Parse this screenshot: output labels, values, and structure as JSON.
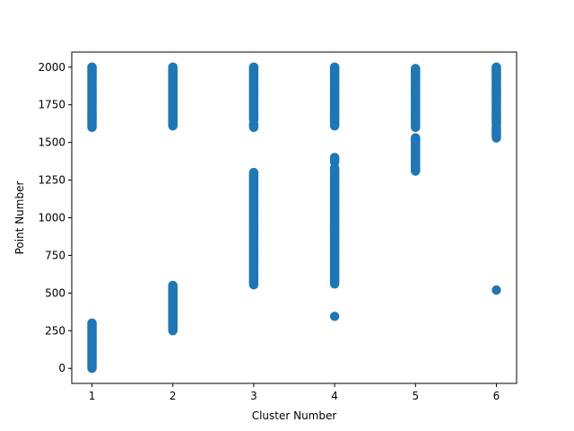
{
  "chart_data": {
    "type": "scatter",
    "xlabel": "Cluster Number",
    "ylabel": "Point Number",
    "xlim": [
      0.75,
      6.25
    ],
    "ylim": [
      -100,
      2100
    ],
    "xticks": [
      1,
      2,
      3,
      4,
      5,
      6
    ],
    "yticks": [
      0,
      250,
      500,
      750,
      1000,
      1250,
      1500,
      1750,
      2000
    ],
    "grid": false,
    "marker_color": "#1f77b4",
    "series": [
      {
        "clusters": [
          {
            "x": 1,
            "ranges": [
              [
                0,
                300
              ],
              [
                1600,
                2000
              ]
            ],
            "points": []
          },
          {
            "x": 2,
            "ranges": [
              [
                250,
                550
              ],
              [
                1610,
                2000
              ]
            ],
            "points": []
          },
          {
            "x": 3,
            "ranges": [
              [
                555,
                1300
              ],
              [
                1600,
                1620
              ],
              [
                1650,
                2000
              ]
            ],
            "points": []
          },
          {
            "x": 4,
            "ranges": [
              [
                560,
                1330
              ],
              [
                1370,
                1400
              ],
              [
                1610,
                2000
              ]
            ],
            "points": [
              345
            ]
          },
          {
            "x": 5,
            "ranges": [
              [
                1310,
                1530
              ],
              [
                1600,
                1990
              ]
            ],
            "points": []
          },
          {
            "x": 6,
            "ranges": [
              [
                1530,
                1600
              ],
              [
                1620,
                2000
              ]
            ],
            "points": [
              520
            ]
          }
        ]
      }
    ]
  }
}
